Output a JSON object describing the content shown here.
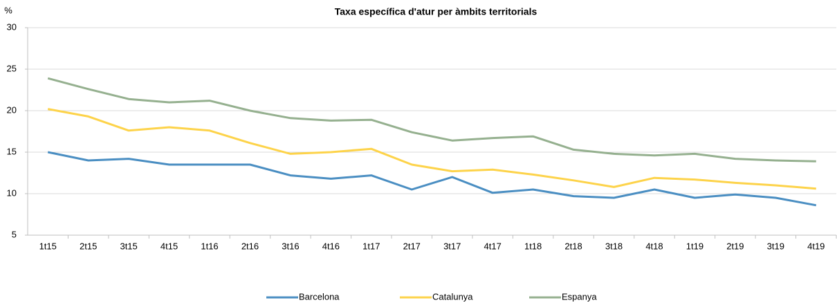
{
  "chart_data": {
    "type": "line",
    "title": "Taxa específica d'atur per àmbits territorials",
    "ylabel": "%",
    "categories": [
      "1t15",
      "2t15",
      "3t15",
      "4t15",
      "1t16",
      "2t16",
      "3t16",
      "4t16",
      "1t17",
      "2t17",
      "3t17",
      "4t17",
      "1t18",
      "2t18",
      "3t18",
      "4t18",
      "1t19",
      "2t19",
      "3t19",
      "4t19"
    ],
    "series": [
      {
        "name": "Barcelona",
        "color": "#4a8ec2",
        "values": [
          15.0,
          14.0,
          14.2,
          13.5,
          13.5,
          13.5,
          12.2,
          11.8,
          12.2,
          10.5,
          12.0,
          10.1,
          10.5,
          9.7,
          9.5,
          10.5,
          9.5,
          9.9,
          9.5,
          8.6
        ]
      },
      {
        "name": "Catalunya",
        "color": "#fdd34a",
        "values": [
          20.2,
          19.3,
          17.6,
          18.0,
          17.6,
          16.1,
          14.8,
          15.0,
          15.4,
          13.5,
          12.7,
          12.9,
          12.3,
          11.6,
          10.8,
          11.9,
          11.7,
          11.3,
          11.0,
          10.6
        ]
      },
      {
        "name": "Espanya",
        "color": "#95b08f",
        "values": [
          23.9,
          22.6,
          21.4,
          21.0,
          21.2,
          20.0,
          19.1,
          18.8,
          18.9,
          17.4,
          16.4,
          16.7,
          16.9,
          15.3,
          14.8,
          14.6,
          14.8,
          14.2,
          14.0,
          13.9
        ]
      }
    ],
    "ylim": [
      5,
      30
    ],
    "yticks": [
      5,
      10,
      15,
      20,
      25,
      30
    ],
    "grid": true,
    "legend": "bottom"
  }
}
